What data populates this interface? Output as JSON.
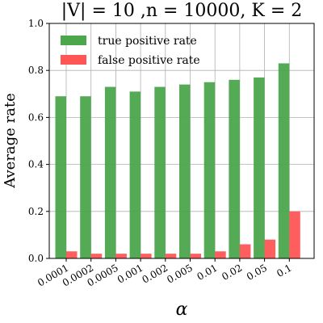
{
  "chart_data": {
    "type": "bar",
    "title": "|V| = 10 ,n = 10000, K = 2",
    "xlabel": "α",
    "ylabel": "Average rate",
    "ylim": [
      0,
      1.0
    ],
    "yticks": [
      "0.0",
      "0.2",
      "0.4",
      "0.6",
      "0.8",
      "1.0"
    ],
    "grid": true,
    "legend_position": "top-left",
    "categories": [
      "0.0001",
      "0.0002",
      "0.0005",
      "0.001",
      "0.002",
      "0.005",
      "0.01",
      "0.02",
      "0.05",
      "0.1"
    ],
    "series": [
      {
        "name": "true positive rate",
        "color": "#4ca64c",
        "values": [
          0.69,
          0.69,
          0.73,
          0.71,
          0.73,
          0.74,
          0.75,
          0.76,
          0.77,
          0.83
        ]
      },
      {
        "name": "false positive rate",
        "color": "#ff5555",
        "values": [
          0.03,
          0.02,
          0.02,
          0.02,
          0.02,
          0.02,
          0.03,
          0.06,
          0.08,
          0.2
        ]
      }
    ]
  }
}
